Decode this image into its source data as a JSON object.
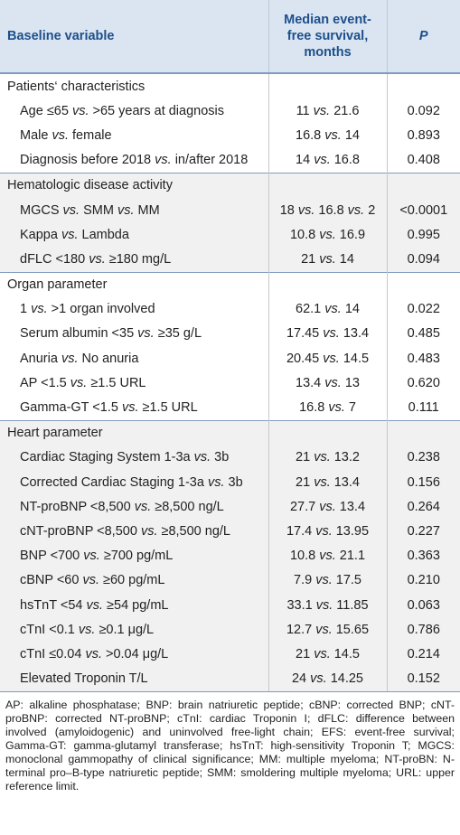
{
  "header": {
    "variable": "Baseline variable",
    "efs": "Median event-free survival, months",
    "p": "P"
  },
  "sections": [
    {
      "title": "Patients‘ characteristics",
      "rows": [
        {
          "variable": [
            "Age ≤65 ",
            "vs.",
            " >65 years at diagnosis"
          ],
          "efs": [
            "11 ",
            "vs.",
            " 21.6"
          ],
          "p": "0.092"
        },
        {
          "variable": [
            "Male ",
            "vs.",
            " female"
          ],
          "efs": [
            "16.8 ",
            "vs.",
            " 14"
          ],
          "p": "0.893"
        },
        {
          "variable": [
            "Diagnosis before 2018 ",
            "vs.",
            " in/after 2018"
          ],
          "efs": [
            "14 ",
            "vs.",
            " 16.8"
          ],
          "p": "0.408"
        }
      ]
    },
    {
      "title": "Hematologic disease activity",
      "rows": [
        {
          "variable": [
            "MGCS ",
            "vs.",
            " SMM ",
            "vs.",
            " MM"
          ],
          "efs": [
            "18 ",
            "vs.",
            " 16.8 ",
            "vs.",
            " 2"
          ],
          "p": "<0.0001"
        },
        {
          "variable": [
            "Kappa ",
            "vs.",
            " Lambda"
          ],
          "efs": [
            "10.8 ",
            "vs.",
            " 16.9"
          ],
          "p": "0.995"
        },
        {
          "variable": [
            "dFLC <180 ",
            "vs.",
            " ≥180 mg/L"
          ],
          "efs": [
            "21 ",
            "vs.",
            " 14"
          ],
          "p": "0.094"
        }
      ]
    },
    {
      "title": "Organ parameter",
      "rows": [
        {
          "variable": [
            "1 ",
            "vs.",
            " >1 organ involved"
          ],
          "efs": [
            "62.1 ",
            "vs.",
            " 14"
          ],
          "p": "0.022"
        },
        {
          "variable": [
            "Serum albumin <35 ",
            "vs.",
            " ≥35 g/L"
          ],
          "efs": [
            "17.45 ",
            "vs.",
            " 13.4"
          ],
          "p": "0.485"
        },
        {
          "variable": [
            "Anuria ",
            "vs.",
            " No anuria"
          ],
          "efs": [
            "20.45 ",
            "vs.",
            " 14.5"
          ],
          "p": "0.483"
        },
        {
          "variable": [
            " AP <1.5 ",
            "vs.",
            " ≥1.5 URL"
          ],
          "efs": [
            "13.4 ",
            "vs.",
            " 13"
          ],
          "p": "0.620"
        },
        {
          "variable": [
            "Gamma-GT <1.5 ",
            "vs.",
            " ≥1.5 URL"
          ],
          "efs": [
            "16.8 ",
            "vs.",
            " 7"
          ],
          "p": "0.111"
        }
      ]
    },
    {
      "title": "Heart parameter",
      "rows": [
        {
          "variable": [
            "Cardiac Staging System 1-3a ",
            "vs.",
            " 3b"
          ],
          "efs": [
            "21 ",
            "vs.",
            " 13.2"
          ],
          "p": "0.238"
        },
        {
          "variable": [
            "Corrected Cardiac Staging 1-3a ",
            "vs.",
            " 3b"
          ],
          "efs": [
            "21 ",
            "vs.",
            " 13.4"
          ],
          "p": "0.156"
        },
        {
          "variable": [
            "NT-proBNP <8,500 ",
            "vs.",
            " ≥8,500 ng/L"
          ],
          "efs": [
            "27.7 ",
            "vs.",
            " 13.4"
          ],
          "p": "0.264"
        },
        {
          "variable": [
            "cNT-proBNP <8,500 ",
            "vs.",
            " ≥8,500 ng/L"
          ],
          "efs": [
            "17.4 ",
            "vs.",
            " 13.95"
          ],
          "p": "0.227"
        },
        {
          "variable": [
            "BNP <700 ",
            "vs.",
            " ≥700 pg/mL"
          ],
          "efs": [
            "10.8 ",
            "vs.",
            " 21.1"
          ],
          "p": "0.363"
        },
        {
          "variable": [
            "cBNP <60 ",
            "vs.",
            " ≥60 pg/mL"
          ],
          "efs": [
            "7.9 ",
            "vs.",
            " 17.5"
          ],
          "p": "0.210"
        },
        {
          "variable": [
            "hsTnT <54 ",
            "vs.",
            " ≥54 pg/mL"
          ],
          "efs": [
            "33.1 ",
            "vs.",
            " 11.85"
          ],
          "p": "0.063"
        },
        {
          "variable": [
            "cTnI <0.1 ",
            "vs.",
            " ≥0.1 μg/L"
          ],
          "efs": [
            "12.7 ",
            "vs.",
            " 15.65"
          ],
          "p": "0.786"
        },
        {
          "variable": [
            "cTnI ≤0.04 ",
            "vs.",
            " >0.04 μg/L"
          ],
          "efs": [
            "21 ",
            "vs.",
            " 14.5"
          ],
          "p": "0.214"
        },
        {
          "variable": [
            "Elevated Troponin T/L"
          ],
          "efs": [
            "24 ",
            "vs.",
            " 14.25"
          ],
          "p": "0.152"
        }
      ]
    }
  ],
  "footnote": "AP: alkaline phosphatase; BNP: brain natriuretic peptide; cBNP: corrected BNP; cNT-proBNP: corrected NT-proBNP; cTnI: cardiac Troponin I; dFLC: difference between involved (amyloidogenic) and uninvolved free-light chain; EFS: event-free survival; Gamma-GT: gamma-glutamyl transferase; hsTnT: high-sensitivity Troponin T; MGCS: monoclonal gammopathy of clinical significance; MM: multiple myeloma; NT-proBN: N-terminal pro–B-type natriuretic peptide; SMM: smoldering multiple myeloma; URL: upper reference limit."
}
